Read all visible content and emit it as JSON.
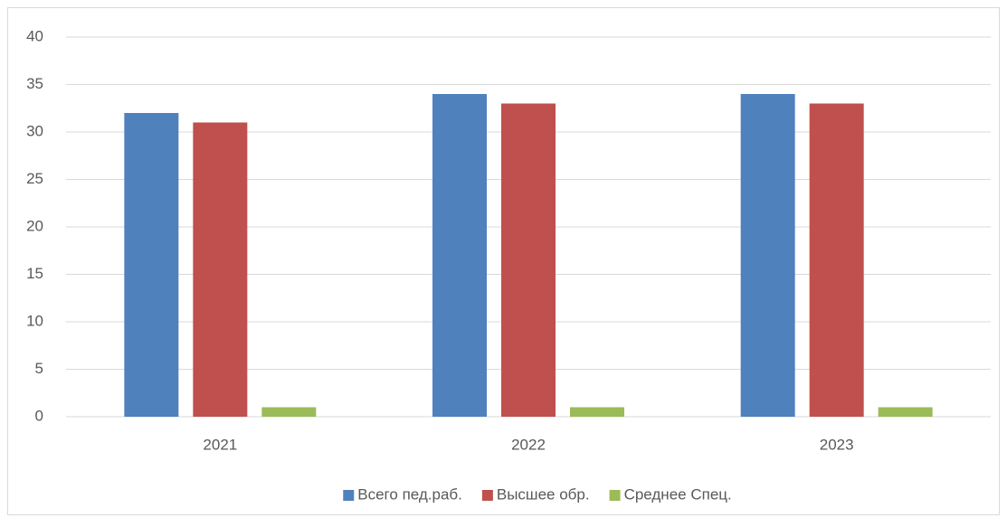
{
  "chart_data": {
    "type": "bar",
    "categories": [
      "2021",
      "2022",
      "2023"
    ],
    "series": [
      {
        "name": "Всего пед.раб.",
        "color": "#4f81bd",
        "values": [
          32,
          34,
          34
        ]
      },
      {
        "name": "Высшее обр.",
        "color": "#c0504d",
        "values": [
          31,
          33,
          33
        ]
      },
      {
        "name": "Среднее Спец.",
        "color": "#9bbb59",
        "values": [
          1,
          1,
          1
        ]
      }
    ],
    "ylim": [
      0,
      40
    ],
    "yticks": [
      0,
      5,
      10,
      15,
      20,
      25,
      30,
      35,
      40
    ],
    "grid": true,
    "legend": "bottom"
  }
}
